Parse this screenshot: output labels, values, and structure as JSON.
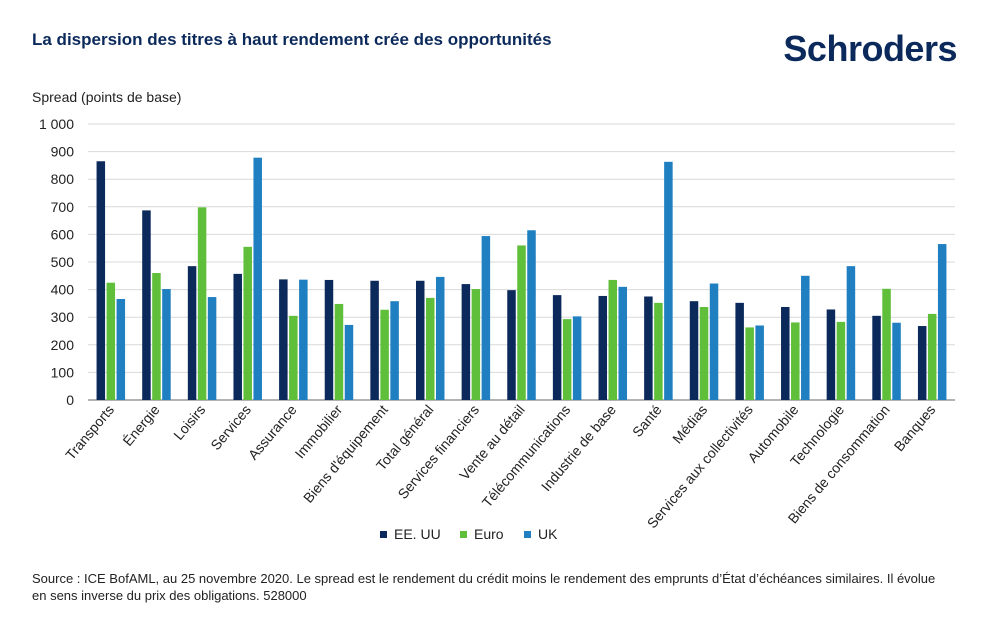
{
  "title": "La dispersion des titres à haut rendement crée des opportunités",
  "brand": "Schroders",
  "source": "Source : ICE BofAML, au 25 novembre 2020. Le spread est le rendement du crédit moins le rendement des emprunts d’État d’échéances similaires. Il évolue en sens inverse du prix des obligations. 528000",
  "chart_data": {
    "type": "bar",
    "ylabel": "Spread (points de base)",
    "xlabel": "",
    "ylim": [
      0,
      1000
    ],
    "yticks": [
      0,
      100,
      200,
      300,
      400,
      500,
      600,
      700,
      800,
      900,
      1000
    ],
    "ytick_labels": [
      "0",
      "100",
      "200",
      "300",
      "400",
      "500",
      "600",
      "700",
      "800",
      "900",
      "1 000"
    ],
    "grid": true,
    "legend_position": "bottom",
    "categories": [
      "Transports",
      "Énergie",
      "Loisirs",
      "Services",
      "Assurance",
      "Immobilier",
      "Biens d'équipement",
      "Total général",
      "Services financiers",
      "Vente au détail",
      "Télécommunications",
      "Industrie de base",
      "Santé",
      "Médias",
      "Services aux collectivités",
      "Automobile",
      "Technologie",
      "Biens de consommation",
      "Banques"
    ],
    "series": [
      {
        "name": "EE. UU",
        "color": "#0b2a5b",
        "values": [
          865,
          687,
          485,
          457,
          437,
          435,
          432,
          432,
          420,
          398,
          380,
          377,
          375,
          358,
          352,
          337,
          328,
          305,
          268
        ]
      },
      {
        "name": "Euro",
        "color": "#5fbf3a",
        "values": [
          425,
          460,
          698,
          555,
          305,
          348,
          327,
          370,
          402,
          560,
          293,
          435,
          352,
          337,
          263,
          281,
          283,
          403,
          312
        ]
      },
      {
        "name": "UK",
        "color": "#1f7fc0",
        "values": [
          366,
          402,
          373,
          878,
          436,
          272,
          358,
          446,
          594,
          615,
          303,
          410,
          863,
          422,
          270,
          450,
          485,
          280,
          565
        ]
      }
    ]
  }
}
